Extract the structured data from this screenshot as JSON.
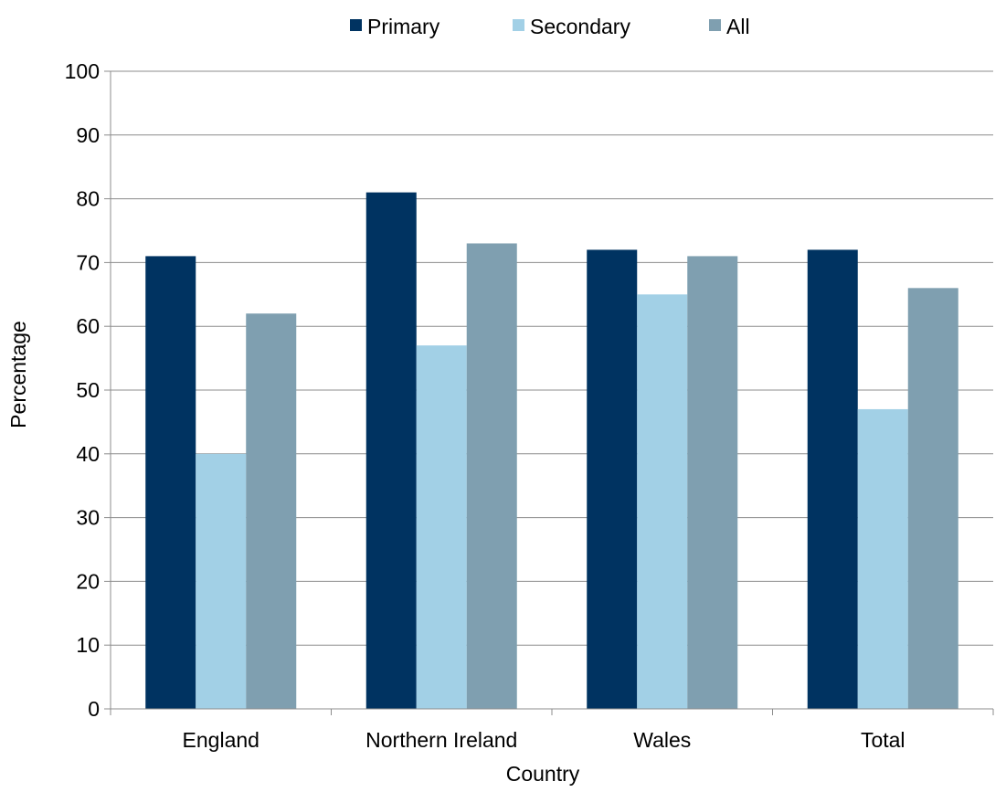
{
  "chart_data": {
    "type": "bar",
    "categories": [
      "England",
      "Northern Ireland",
      "Wales",
      "Total"
    ],
    "series": [
      {
        "name": "Primary",
        "values": [
          71,
          81,
          72,
          72
        ],
        "color": "#003361"
      },
      {
        "name": "Secondary",
        "values": [
          40,
          57,
          65,
          47
        ],
        "color": "#a2d0e6"
      },
      {
        "name": "All",
        "values": [
          62,
          73,
          71,
          66
        ],
        "color": "#7f9fb0"
      }
    ],
    "title": "",
    "xlabel": "Country",
    "ylabel": "Percentage",
    "ylim": [
      0,
      100
    ],
    "yticks": [
      0,
      10,
      20,
      30,
      40,
      50,
      60,
      70,
      80,
      90,
      100
    ],
    "grid": true,
    "legend_position": "top"
  }
}
